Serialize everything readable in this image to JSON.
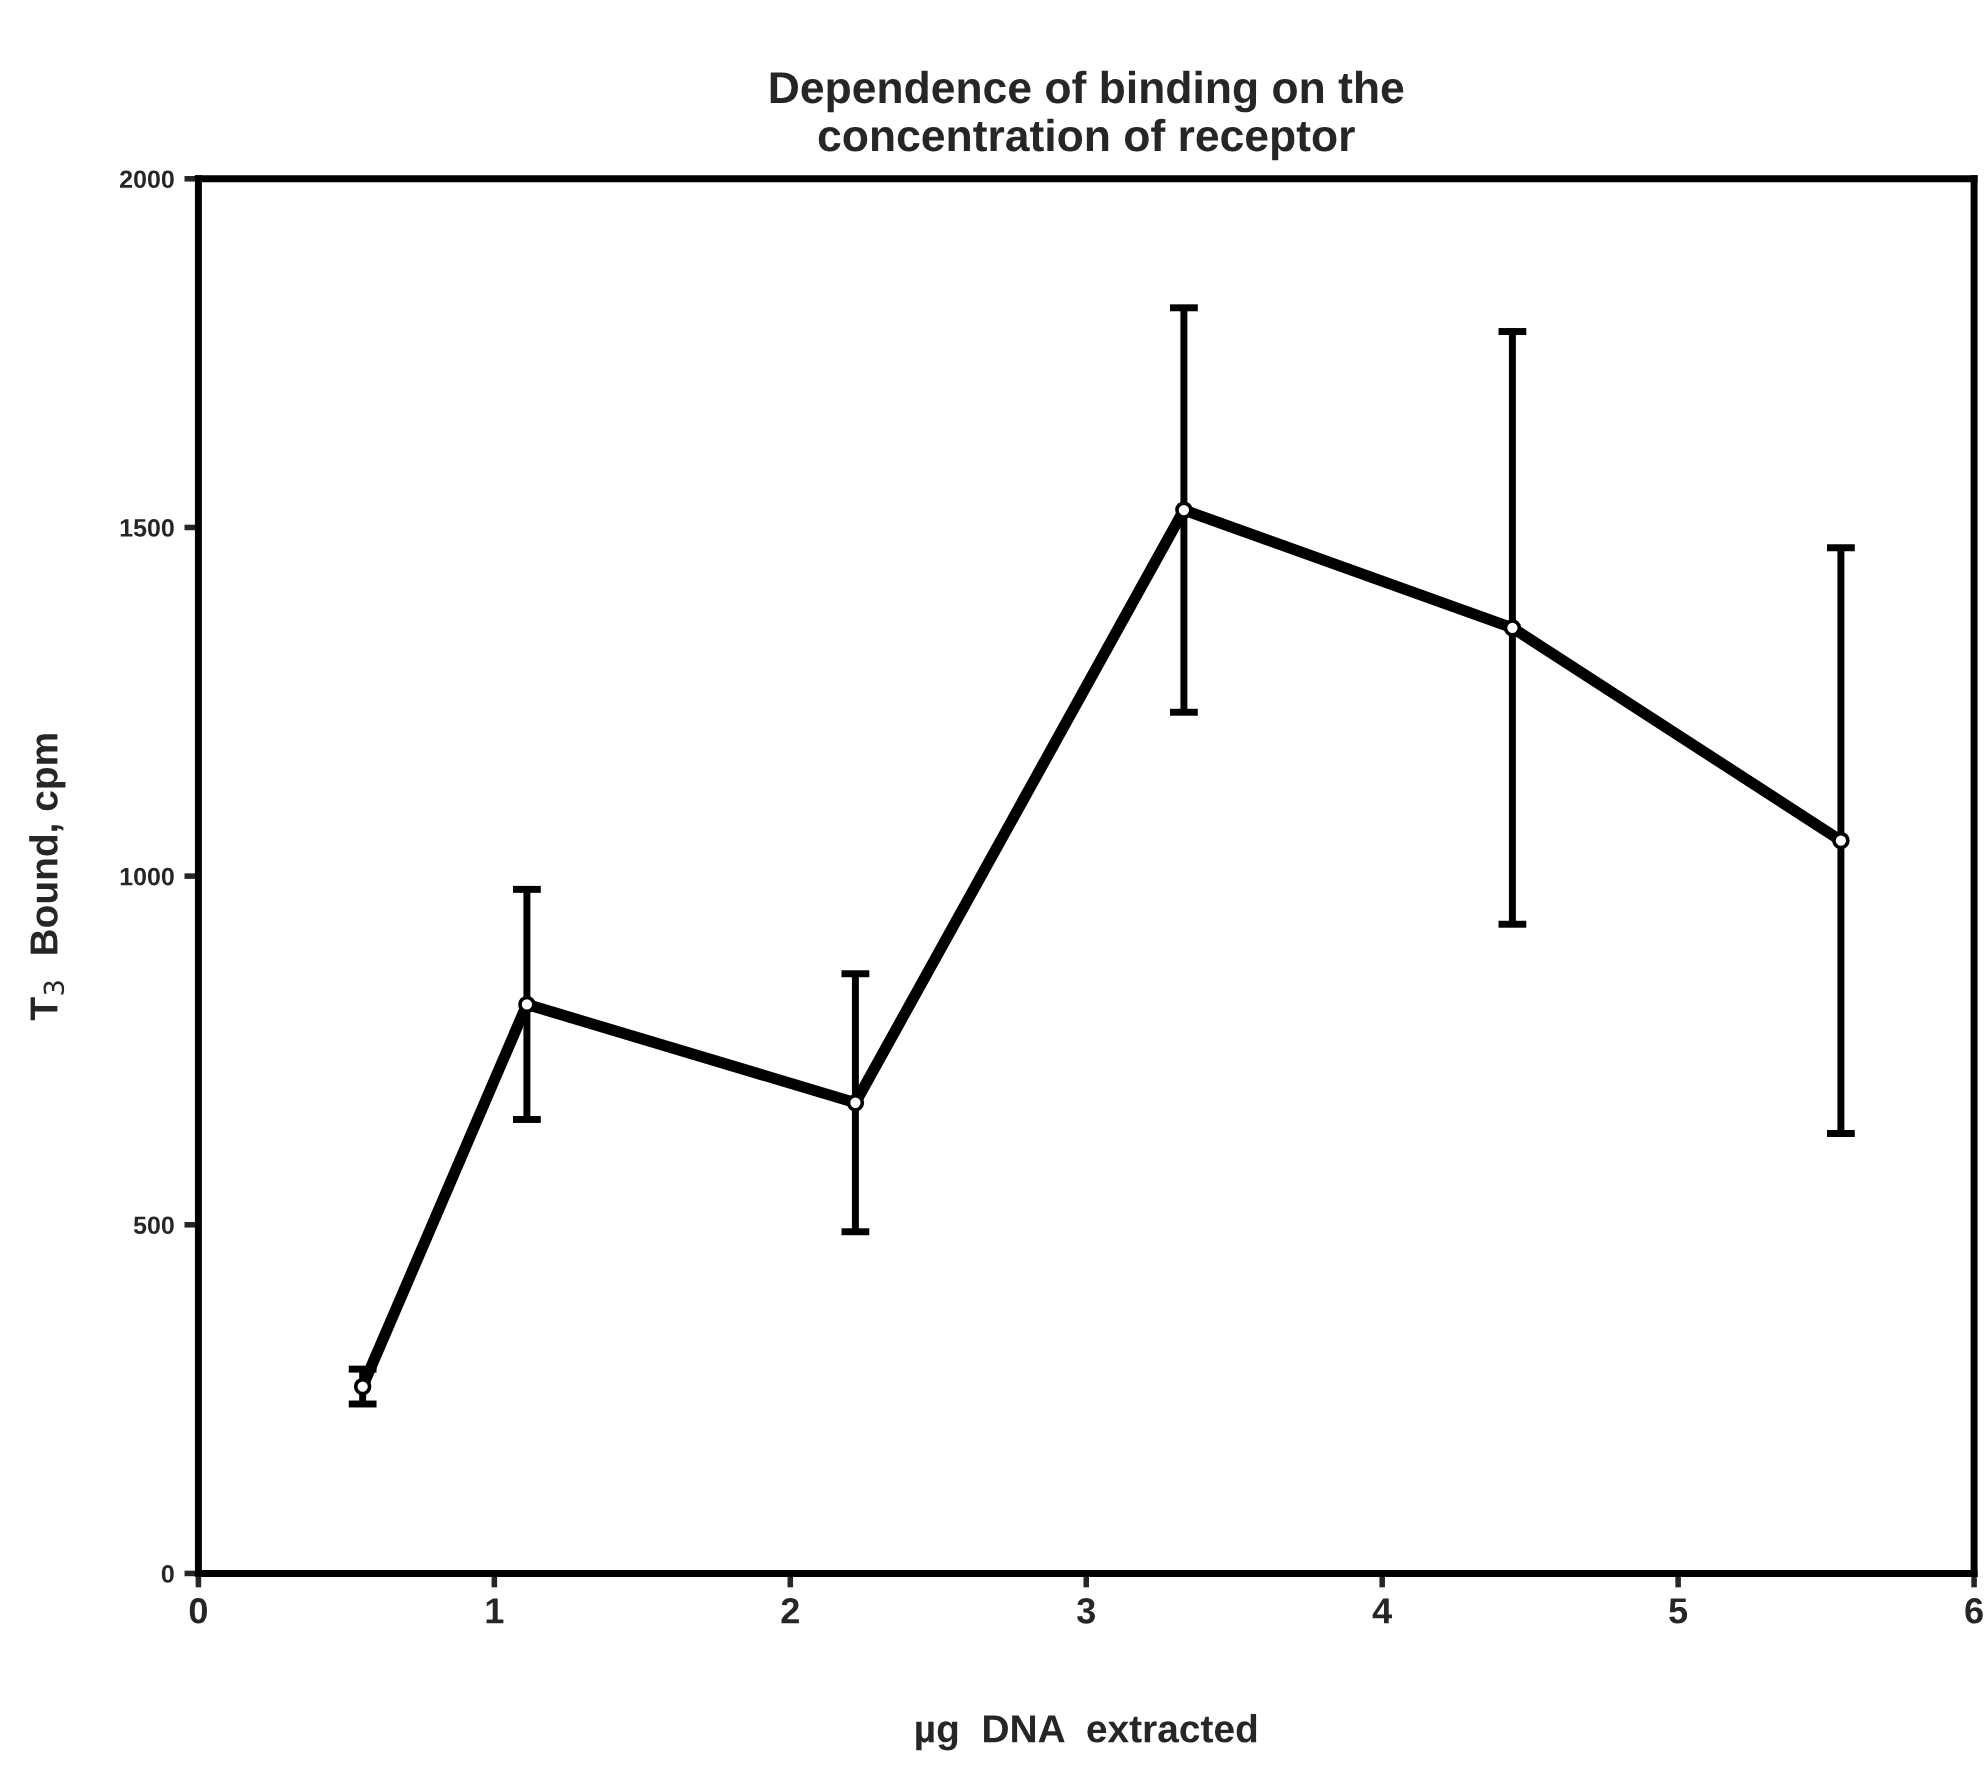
{
  "chart_data": {
    "type": "line",
    "title": "Dependence of binding on the\nconcentration of receptor",
    "xlabel": "µg  DNA  extracted",
    "ylabel": "T$_{3}$  Bound, cpm",
    "x": [
      0.555,
      1.11,
      2.22,
      3.33,
      4.44,
      5.55
    ],
    "series": [
      {
        "color": "#000000",
        "values": [
          268,
          816,
          675,
          1525,
          1356,
          1051
        ],
        "errors": [
          25,
          165,
          185,
          290,
          425,
          420
        ]
      }
    ],
    "xlim": [
      0,
      6
    ],
    "xticks": [
      0,
      1,
      2,
      3,
      4,
      5,
      6
    ],
    "ylim": [
      0,
      2000
    ],
    "yticks": [
      0,
      500,
      1000,
      1500,
      2000
    ],
    "marker": "circle",
    "line_style": "solid",
    "grid": false,
    "legend": false
  }
}
